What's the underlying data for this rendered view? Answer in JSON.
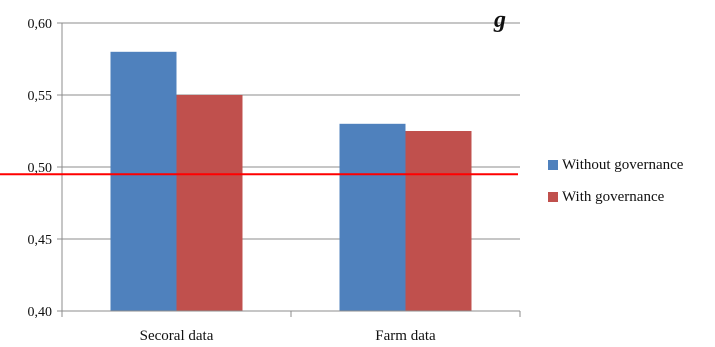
{
  "chart_data": {
    "type": "bar",
    "title": "",
    "title_fragment": "g",
    "xlabel": "",
    "ylabel": "",
    "categories": [
      "Secoral data",
      "Farm data"
    ],
    "series": [
      {
        "name": "Without governance",
        "color": "#4f81bd",
        "values": [
          0.58,
          0.53
        ]
      },
      {
        "name": "With governance",
        "color": "#c0504d",
        "values": [
          0.55,
          0.525
        ]
      }
    ],
    "ylim": [
      0.4,
      0.6
    ],
    "yticks": [
      0.4,
      0.45,
      0.5,
      0.55,
      0.6
    ],
    "ytick_labels": [
      "0,40",
      "0,45",
      "0,50",
      "0,55",
      "0,60"
    ],
    "reference_line": {
      "value": 0.495,
      "color": "#ff0000"
    },
    "grid": true,
    "legend_position": "right"
  }
}
